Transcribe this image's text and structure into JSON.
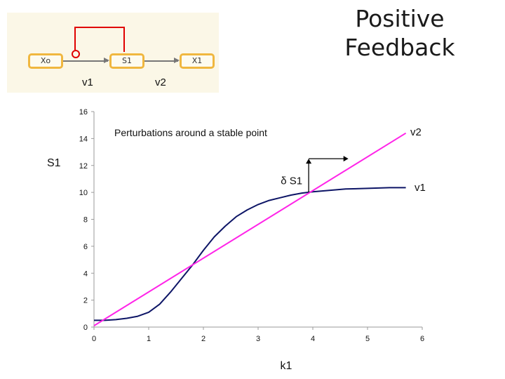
{
  "title_lines": [
    "Positive",
    "Feedback"
  ],
  "pathway": {
    "nodes": [
      "Xo",
      "S1",
      "X1"
    ],
    "reactions": [
      "v1",
      "v2"
    ]
  },
  "colors": {
    "v1": "#0d1566",
    "v2": "#ff24e8",
    "feedback": "#e00000",
    "node_border": "#f0b73f",
    "pathway_bg": "#fbf7e7"
  },
  "chart_data": {
    "type": "line",
    "annotation": "Perturbations around a stable point",
    "perturbation_label": "δ S1",
    "xlabel": "k1",
    "ylabel": "S1",
    "xlim": [
      0,
      6
    ],
    "ylim": [
      0,
      16
    ],
    "xticks": [
      0,
      1,
      2,
      3,
      4,
      5,
      6
    ],
    "yticks": [
      0,
      2,
      4,
      6,
      8,
      10,
      12,
      14,
      16
    ],
    "grid": false,
    "stable_point": [
      3.95,
      10.0
    ],
    "series": [
      {
        "name": "v1",
        "color": "#0d1566",
        "x": [
          0.0,
          0.2,
          0.4,
          0.6,
          0.8,
          1.0,
          1.2,
          1.4,
          1.6,
          1.8,
          2.0,
          2.2,
          2.4,
          2.6,
          2.8,
          3.0,
          3.2,
          3.4,
          3.6,
          3.8,
          4.0,
          4.3,
          4.6,
          5.0,
          5.4,
          5.7
        ],
        "y": [
          0.5,
          0.5,
          0.55,
          0.65,
          0.8,
          1.1,
          1.7,
          2.6,
          3.6,
          4.6,
          5.7,
          6.7,
          7.5,
          8.2,
          8.7,
          9.1,
          9.4,
          9.6,
          9.8,
          9.95,
          10.05,
          10.15,
          10.25,
          10.3,
          10.35,
          10.35
        ]
      },
      {
        "name": "v2",
        "color": "#ff24e8",
        "x": [
          0.0,
          5.7
        ],
        "y": [
          0.1,
          14.4
        ]
      }
    ]
  }
}
